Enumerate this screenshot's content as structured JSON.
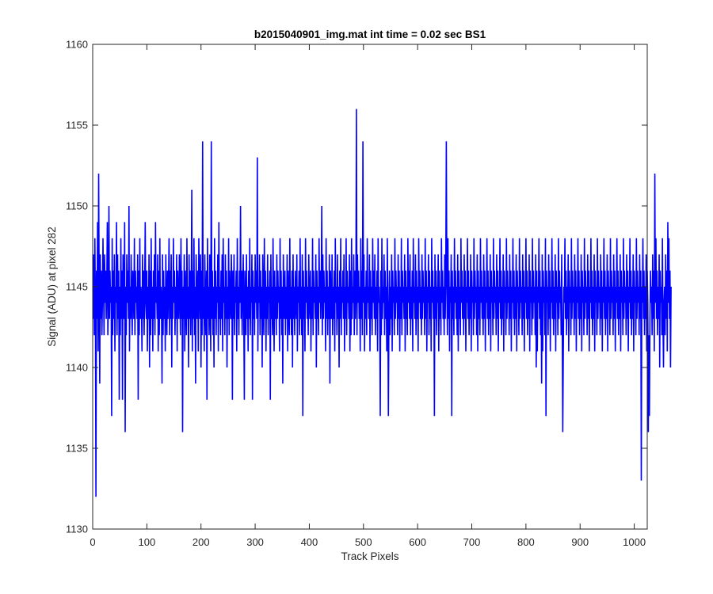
{
  "chart_data": {
    "type": "line",
    "title": "b2015040901_img.mat int time = 0.02 sec   BS1",
    "xlabel": "Track Pixels",
    "ylabel": "Signal (ADU) at pixel 282",
    "xlim": [
      0,
      1024
    ],
    "ylim": [
      1130,
      1160
    ],
    "xticks": [
      "0",
      "100",
      "200",
      "300",
      "400",
      "500",
      "600",
      "700",
      "800",
      "900",
      "1000"
    ],
    "yticks": [
      "1130",
      "1135",
      "1140",
      "1145",
      "1150",
      "1155",
      "1160"
    ],
    "grid": false,
    "line_color": "#0000ff",
    "series": [
      {
        "x_start": 1,
        "x_step": 1,
        "values": [
          1143,
          1147,
          1142,
          1148,
          1144,
          1132,
          1146,
          1143,
          1149,
          1141,
          1152,
          1145,
          1139,
          1147,
          1143,
          1146,
          1142,
          1144,
          1148,
          1145,
          1142,
          1147,
          1144,
          1146,
          1143,
          1145,
          1149,
          1142,
          1144,
          1150,
          1143,
          1146,
          1144,
          1145,
          1137,
          1148,
          1142,
          1146,
          1143,
          1147,
          1141,
          1145,
          1144,
          1149,
          1142,
          1147,
          1143,
          1146,
          1138,
          1145,
          1142,
          1148,
          1143,
          1146,
          1138,
          1147,
          1144,
          1143,
          1149,
          1136,
          1145,
          1142,
          1147,
          1144,
          1146,
          1143,
          1150,
          1141,
          1145,
          1143,
          1147,
          1144,
          1142,
          1146,
          1145,
          1143,
          1148,
          1142,
          1146,
          1144,
          1145,
          1143,
          1147,
          1138,
          1146,
          1142,
          1148,
          1143,
          1145,
          1144,
          1141,
          1147,
          1143,
          1146,
          1142,
          1145,
          1149,
          1144,
          1143,
          1146,
          1141,
          1145,
          1143,
          1147,
          1140,
          1146,
          1142,
          1148,
          1143,
          1145,
          1141,
          1146,
          1143,
          1147,
          1142,
          1149,
          1144,
          1145,
          1143,
          1147,
          1141,
          1146,
          1142,
          1148,
          1143,
          1145,
          1144,
          1139,
          1147,
          1142,
          1146,
          1143,
          1145,
          1141,
          1147,
          1144,
          1142,
          1146,
          1143,
          1145,
          1148,
          1142,
          1146,
          1143,
          1147,
          1140,
          1145,
          1143,
          1148,
          1144,
          1146,
          1142,
          1145,
          1143,
          1147,
          1141,
          1146,
          1144,
          1143,
          1147,
          1145,
          1142,
          1148,
          1143,
          1146,
          1136,
          1145,
          1143,
          1147,
          1141,
          1146,
          1144,
          1142,
          1148,
          1143,
          1145,
          1140,
          1147,
          1143,
          1146,
          1142,
          1145,
          1151,
          1141,
          1146,
          1143,
          1148,
          1142,
          1145,
          1139,
          1147,
          1144,
          1143,
          1146,
          1141,
          1148,
          1145,
          1143,
          1147,
          1140,
          1146,
          1142,
          1154,
          1143,
          1145,
          1141,
          1147,
          1144,
          1142,
          1146,
          1138,
          1148,
          1143,
          1145,
          1142,
          1147,
          1144,
          1141,
          1154,
          1143,
          1146,
          1142,
          1145,
          1140,
          1148,
          1143,
          1146,
          1142,
          1145,
          1144,
          1147,
          1141,
          1149,
          1143,
          1145,
          1142,
          1146,
          1143,
          1147,
          1141,
          1148,
          1144,
          1145,
          1142,
          1147,
          1143,
          1146,
          1140,
          1145,
          1143,
          1148,
          1142,
          1146,
          1144,
          1143,
          1147,
          1145,
          1138,
          1146,
          1143,
          1147,
          1142,
          1145,
          1144,
          1146,
          1141,
          1148,
          1143,
          1145,
          1142,
          1146,
          1144,
          1150,
          1143,
          1146,
          1142,
          1145,
          1147,
          1143,
          1138,
          1146,
          1144,
          1142,
          1147,
          1143,
          1145,
          1141,
          1146,
          1143,
          1148,
          1142,
          1145,
          1144,
          1147,
          1138,
          1146,
          1143,
          1145,
          1142,
          1147,
          1144,
          1146,
          1143,
          1153,
          1141,
          1145,
          1144,
          1147,
          1142,
          1146,
          1143,
          1145,
          1140,
          1147,
          1144,
          1142,
          1148,
          1143,
          1146,
          1141,
          1145,
          1143,
          1147,
          1142,
          1145,
          1144,
          1146,
          1138,
          1147,
          1143,
          1145,
          1142,
          1148,
          1144,
          1141,
          1146,
          1143,
          1145,
          1142,
          1147,
          1143,
          1146,
          1144,
          1145,
          1141,
          1148,
          1143,
          1146,
          1142,
          1145,
          1139,
          1147,
          1144,
          1143,
          1146,
          1142,
          1145,
          1143,
          1147,
          1141,
          1146,
          1144,
          1142,
          1148,
          1143,
          1145,
          1142,
          1146,
          1140,
          1147,
          1143,
          1145,
          1142,
          1146,
          1144,
          1143,
          1147,
          1141,
          1145,
          1144,
          1146,
          1142,
          1148,
          1143,
          1145,
          1142,
          1147,
          1137,
          1146,
          1143,
          1145,
          1141,
          1148,
          1144,
          1146,
          1143,
          1145,
          1142,
          1147,
          1144,
          1143,
          1146,
          1141,
          1145,
          1143,
          1148,
          1142,
          1146,
          1144,
          1145,
          1143,
          1147,
          1140,
          1146,
          1143,
          1145,
          1142,
          1148,
          1144,
          1146,
          1143,
          1145,
          1150,
          1142,
          1147,
          1143,
          1146,
          1144,
          1145,
          1141,
          1148,
          1143,
          1146,
          1142,
          1145,
          1143,
          1147,
          1139,
          1146,
          1144,
          1143,
          1147,
          1142,
          1145,
          1143,
          1146,
          1141,
          1148,
          1144,
          1145,
          1142,
          1147,
          1143,
          1145,
          1140,
          1146,
          1143,
          1148,
          1142,
          1145,
          1144,
          1146,
          1143,
          1147,
          1141,
          1145,
          1143,
          1148,
          1142,
          1146,
          1144,
          1145,
          1143,
          1147,
          1141,
          1146,
          1142,
          1148,
          1143,
          1145,
          1144,
          1147,
          1142,
          1146,
          1143,
          1145,
          1156,
          1142,
          1147,
          1144,
          1146,
          1143,
          1145,
          1141,
          1148,
          1143,
          1146,
          1142,
          1154,
          1144,
          1147,
          1141,
          1145,
          1143,
          1146,
          1142,
          1148,
          1144,
          1145,
          1143,
          1147,
          1141,
          1146,
          1143,
          1145,
          1142,
          1148,
          1144,
          1146,
          1143,
          1147,
          1142,
          1145,
          1143,
          1146,
          1141,
          1148,
          1144,
          1145,
          1143,
          1137,
          1146,
          1142,
          1148,
          1143,
          1145,
          1144,
          1147,
          1142,
          1146,
          1143,
          1145,
          1141,
          1148,
          1144,
          1137,
          1143,
          1146,
          1142,
          1145,
          1143,
          1147,
          1141,
          1146,
          1144,
          1145,
          1142,
          1148,
          1143,
          1146,
          1144,
          1145,
          1142,
          1147,
          1143,
          1146,
          1141,
          1145,
          1143,
          1148,
          1142,
          1146,
          1144,
          1145,
          1143,
          1147,
          1141,
          1146,
          1143,
          1145,
          1142,
          1148,
          1144,
          1146,
          1143,
          1147,
          1142,
          1145,
          1143,
          1146,
          1141,
          1148,
          1144,
          1145,
          1143,
          1147,
          1142,
          1146,
          1143,
          1145,
          1141,
          1148,
          1144,
          1146,
          1143,
          1145,
          1142,
          1147,
          1143,
          1146,
          1144,
          1145,
          1142,
          1148,
          1143,
          1146,
          1141,
          1145,
          1144,
          1147,
          1142,
          1146,
          1143,
          1145,
          1141,
          1148,
          1144,
          1146,
          1143,
          1145,
          1137,
          1147,
          1143,
          1146,
          1142,
          1145,
          1144,
          1147,
          1141,
          1146,
          1143,
          1145,
          1142,
          1148,
          1144,
          1146,
          1143,
          1145,
          1142,
          1147,
          1143,
          1146,
          1154,
          1145,
          1142,
          1148,
          1143,
          1146,
          1141,
          1145,
          1144,
          1147,
          1137,
          1146,
          1143,
          1145,
          1142,
          1148,
          1144,
          1146,
          1143,
          1145,
          1142,
          1147,
          1141,
          1146,
          1143,
          1145,
          1142,
          1148,
          1144,
          1146,
          1143,
          1145,
          1142,
          1147,
          1143,
          1146,
          1141,
          1145,
          1144,
          1148,
          1143,
          1146,
          1142,
          1145,
          1143,
          1147,
          1141,
          1146,
          1144,
          1145,
          1142,
          1148,
          1143,
          1146,
          1144,
          1145,
          1142,
          1147,
          1141,
          1146,
          1143,
          1145,
          1142,
          1148,
          1144,
          1146,
          1143,
          1145,
          1142,
          1147,
          1143,
          1146,
          1141,
          1145,
          1144,
          1148,
          1143,
          1146,
          1142,
          1145,
          1143,
          1147,
          1141,
          1146,
          1144,
          1145,
          1142,
          1148,
          1143,
          1146,
          1144,
          1145,
          1142,
          1147,
          1143,
          1146,
          1141,
          1145,
          1144,
          1148,
          1143,
          1146,
          1142,
          1145,
          1143,
          1147,
          1141,
          1146,
          1144,
          1145,
          1142,
          1148,
          1143,
          1146,
          1144,
          1145,
          1142,
          1147,
          1143,
          1146,
          1141,
          1145,
          1144,
          1148,
          1143,
          1146,
          1142,
          1145,
          1143,
          1147,
          1141,
          1146,
          1144,
          1145,
          1142,
          1148,
          1143,
          1146,
          1144,
          1145,
          1142,
          1147,
          1143,
          1146,
          1141,
          1145,
          1144,
          1148,
          1143,
          1146,
          1142,
          1145,
          1143,
          1147,
          1141,
          1146,
          1144,
          1145,
          1142,
          1148,
          1143,
          1146,
          1144,
          1145,
          1142,
          1147,
          1140,
          1146,
          1141,
          1145,
          1144,
          1148,
          1143,
          1146,
          1142,
          1145,
          1139,
          1147,
          1141,
          1146,
          1144,
          1145,
          1142,
          1148,
          1137,
          1146,
          1144,
          1145,
          1142,
          1147,
          1143,
          1146,
          1141,
          1145,
          1144,
          1148,
          1143,
          1146,
          1142,
          1145,
          1143,
          1147,
          1141,
          1146,
          1144,
          1145,
          1142,
          1148,
          1143,
          1146,
          1144,
          1145,
          1142,
          1147,
          1143,
          1136,
          1141,
          1145,
          1144,
          1148,
          1143,
          1146,
          1142,
          1145,
          1143,
          1147,
          1141,
          1146,
          1144,
          1145,
          1142,
          1148,
          1143,
          1146,
          1144,
          1145,
          1142,
          1147,
          1143,
          1146,
          1141,
          1145,
          1144,
          1148,
          1143,
          1146,
          1142,
          1145,
          1143,
          1147,
          1141,
          1146,
          1144,
          1145,
          1142,
          1148,
          1143,
          1146,
          1144,
          1145,
          1142,
          1147,
          1143,
          1146,
          1141,
          1145,
          1144,
          1148,
          1143,
          1146,
          1142,
          1145,
          1143,
          1147,
          1141,
          1146,
          1144,
          1145,
          1142,
          1148,
          1143,
          1146,
          1144,
          1145,
          1142,
          1147,
          1143,
          1146,
          1141,
          1145,
          1144,
          1148,
          1143,
          1146,
          1142,
          1145,
          1143,
          1147,
          1141,
          1146,
          1144,
          1145,
          1142,
          1148,
          1143,
          1146,
          1144,
          1145,
          1142,
          1147,
          1143,
          1146,
          1141,
          1145,
          1144,
          1148,
          1143,
          1146,
          1142,
          1145,
          1143,
          1147,
          1141,
          1146,
          1144,
          1145,
          1142,
          1148,
          1143,
          1146,
          1144,
          1145,
          1142,
          1147,
          1143,
          1146,
          1141,
          1145,
          1144,
          1148,
          1143,
          1146,
          1142,
          1145,
          1143,
          1147,
          1141,
          1146,
          1144,
          1145,
          1142,
          1148,
          1143,
          1146,
          1144,
          1145,
          1142,
          1147,
          1143,
          1146,
          1133,
          1145,
          1144,
          1148,
          1143,
          1146,
          1142,
          1145,
          1143,
          1147,
          1141,
          1146,
          1144,
          1136,
          1142,
          1137,
          1143,
          1146,
          1144,
          1145,
          1142,
          1147,
          1143,
          1146,
          1141,
          1152,
          1144,
          1148,
          1143,
          1146,
          1142,
          1145,
          1143,
          1147,
          1140,
          1146,
          1144,
          1145,
          1142,
          1148,
          1143,
          1140,
          1144,
          1145,
          1142,
          1147,
          1143,
          1146,
          1141,
          1149,
          1144,
          1148,
          1143,
          1146,
          1140,
          1145
        ]
      }
    ]
  }
}
